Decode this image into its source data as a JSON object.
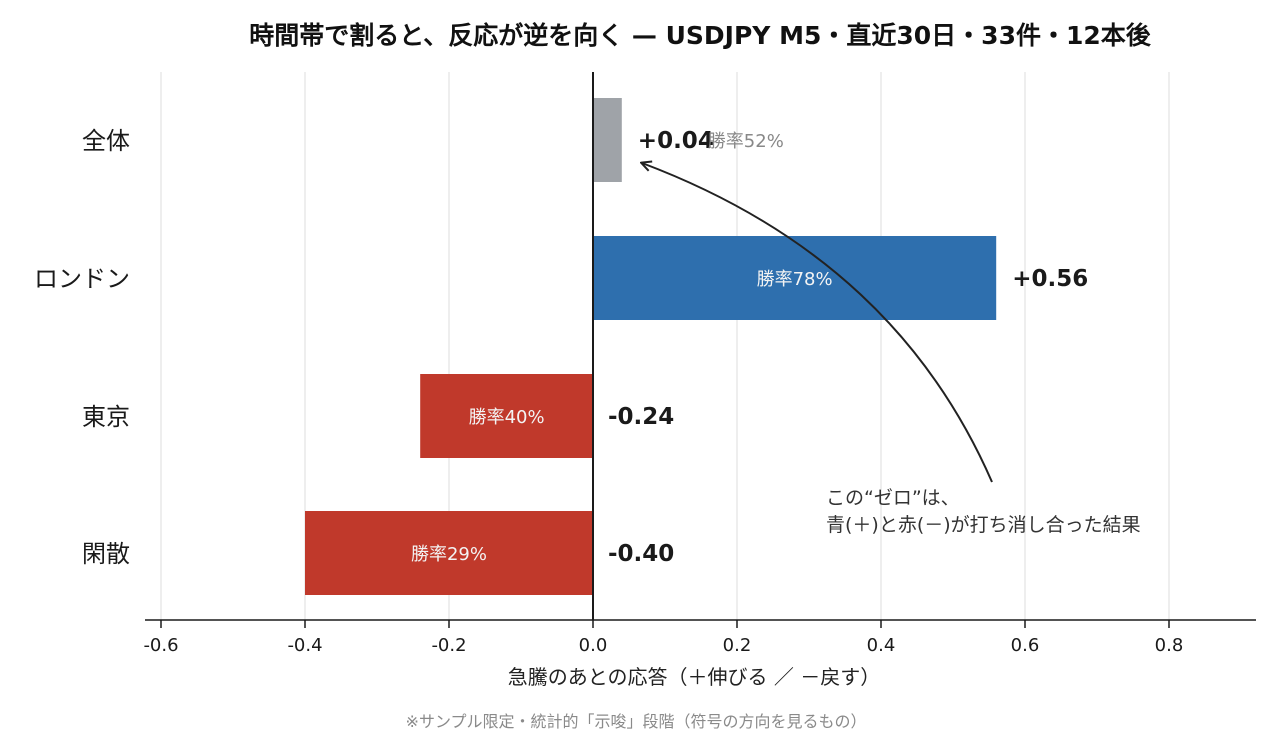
{
  "chart_data": {
    "type": "bar",
    "orientation": "horizontal",
    "title": "時間帯で割ると、反応が逆を向く — USDJPY M5・直近30日・33件・12本後",
    "xlabel": "急騰のあとの応答（＋伸びる ／ －戻す）",
    "ylabel": "",
    "categories": [
      "全体",
      "ロンドン",
      "東京",
      "閑散"
    ],
    "values": [
      0.04,
      0.56,
      -0.24,
      -0.4
    ],
    "value_labels": [
      "+0.04",
      "+0.56",
      "-0.24",
      "-0.40"
    ],
    "win_rates": [
      "勝率52%",
      "勝率78%",
      "勝率40%",
      "勝率29%"
    ],
    "bar_colors": [
      "#9fa3a8",
      "#2e6fae",
      "#c0392b",
      "#c0392b"
    ],
    "xlim": [
      -0.62,
      0.92
    ],
    "xticks": [
      -0.6,
      -0.4,
      -0.2,
      0.0,
      0.2,
      0.4,
      0.6,
      0.8
    ],
    "xtick_labels": [
      "-0.6",
      "-0.4",
      "-0.2",
      "0.0",
      "0.2",
      "0.4",
      "0.6",
      "0.8"
    ],
    "grid": "vertical",
    "annotation": {
      "lines": [
        "この“ゼロ”は、",
        "青(＋)と赤(－)が打ち消し合った結果"
      ],
      "points_to": "全体"
    },
    "footnote": "※サンプル限定・統計的「示唆」段階（符号の方向を見るもの）"
  },
  "colors": {
    "positive": "#2e6fae",
    "negative": "#c0392b",
    "neutral": "#9fa3a8",
    "grid": "#e3e3e3",
    "axis": "#1a1a1a"
  }
}
